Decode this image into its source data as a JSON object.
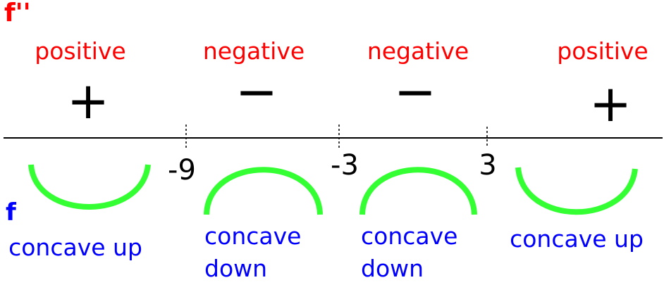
{
  "derivative_label": "f''",
  "function_label": "f",
  "colors": {
    "derivative": "#ff0000",
    "function": "#0000ff",
    "arc": "#33ff33",
    "axis": "#000000"
  },
  "critical_points": [
    "-9",
    "-3",
    "3"
  ],
  "intervals": [
    {
      "sign_word": "positive",
      "sign": "+",
      "concavity": [
        "concave up"
      ],
      "shape": "up"
    },
    {
      "sign_word": "negative",
      "sign": "−",
      "concavity": [
        "concave",
        "down"
      ],
      "shape": "down"
    },
    {
      "sign_word": "negative",
      "sign": "−",
      "concavity": [
        "concave",
        "down"
      ],
      "shape": "down"
    },
    {
      "sign_word": "positive",
      "sign": "+",
      "concavity": [
        "concave up"
      ],
      "shape": "up"
    }
  ]
}
